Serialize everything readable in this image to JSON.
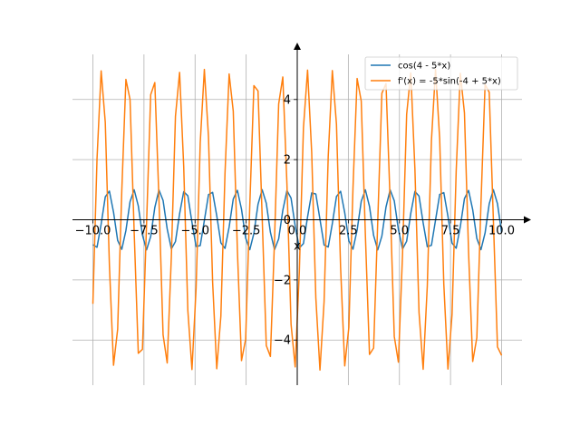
{
  "chart_data": {
    "type": "line",
    "title": "",
    "xlabel": "x",
    "ylabel": "",
    "xlim": [
      -10,
      10
    ],
    "ylim": [
      -5.5,
      5.5
    ],
    "xticks": [
      -10.0,
      -7.5,
      -5.0,
      -2.5,
      0.0,
      2.5,
      5.0,
      7.5,
      10.0
    ],
    "xtick_labels": [
      "−10.0",
      "−7.5",
      "−5.0",
      "−2.5",
      "0.0",
      "2.5",
      "5.0",
      "7.5",
      "10.0"
    ],
    "yticks": [
      -4,
      -2,
      0,
      2,
      4
    ],
    "ytick_labels": [
      "−4",
      "−2",
      "0",
      "2",
      "4"
    ],
    "grid": true,
    "legend_position": "top-right",
    "x_sampling": {
      "start": -10,
      "end": 10,
      "count": 100
    },
    "series": [
      {
        "name": "cos(4 - 5*x)",
        "color": "#1f77b4",
        "expression": "cos(4 - 5*x)"
      },
      {
        "name": "f'(x) = -5*sin(-4 + 5*x)",
        "color": "#ff7f0e",
        "expression": "-5*sin(-4 + 5*x)"
      }
    ]
  }
}
